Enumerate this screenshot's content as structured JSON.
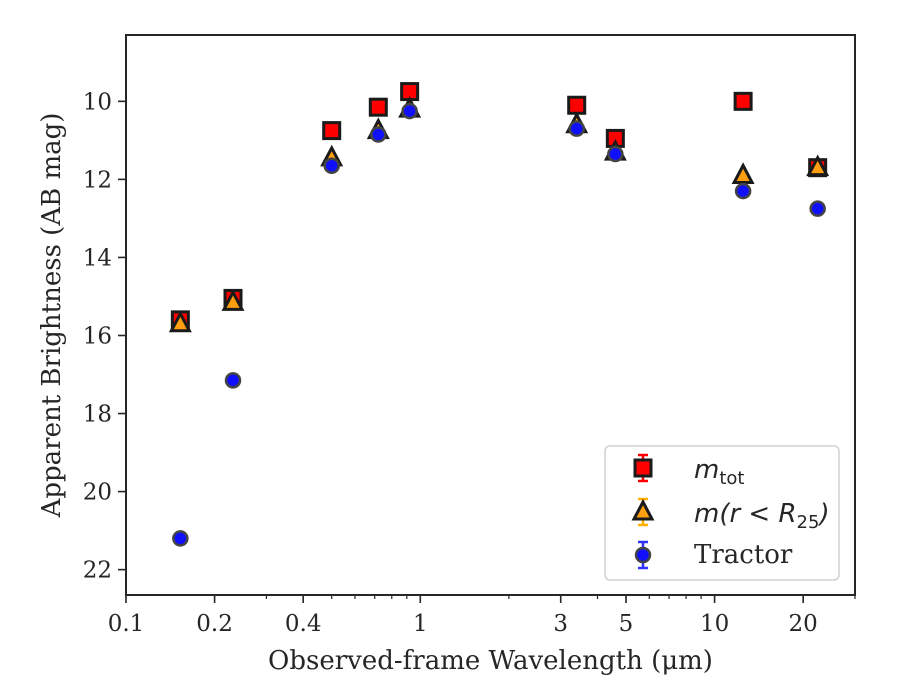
{
  "chart_data": {
    "type": "scatter",
    "xlabel": "Observed-frame Wavelength (μm)",
    "ylabel": "Apparent Brightness (AB mag)",
    "xscale": "log",
    "xlim": [
      0.1,
      30
    ],
    "ylim": [
      22.65,
      8.3
    ],
    "y_inverted": true,
    "x_ticks": [
      0.1,
      0.2,
      0.4,
      1,
      3,
      5,
      10,
      20
    ],
    "x_tick_labels": [
      "0.1",
      "0.2",
      "0.4",
      "1",
      "3",
      "5",
      "10",
      "20"
    ],
    "y_ticks": [
      10,
      12,
      14,
      16,
      18,
      20,
      22
    ],
    "y_tick_labels": [
      "10",
      "12",
      "14",
      "16",
      "18",
      "20",
      "22"
    ],
    "legend_position": "lower right",
    "series": [
      {
        "name": "m_tot",
        "legend_main": "m",
        "legend_sub": "tot",
        "marker": "square",
        "color": "#ff0000",
        "errorbar_color": "#ff0000",
        "points": [
          {
            "x": 0.153,
            "y": 15.6
          },
          {
            "x": 0.231,
            "y": 15.05
          },
          {
            "x": 0.5,
            "y": 10.75
          },
          {
            "x": 0.72,
            "y": 10.15
          },
          {
            "x": 0.92,
            "y": 9.75
          },
          {
            "x": 3.4,
            "y": 10.1
          },
          {
            "x": 4.6,
            "y": 10.95
          },
          {
            "x": 12.5,
            "y": 10.0
          },
          {
            "x": 22.4,
            "y": 11.7
          }
        ]
      },
      {
        "name": "m(r < R25)",
        "legend_main": "m(r < R",
        "legend_sub": "25",
        "legend_end": ")",
        "marker": "triangle",
        "color": "#ff9f0f",
        "errorbar_color": "#ffb000",
        "points": [
          {
            "x": 0.153,
            "y": 15.7
          },
          {
            "x": 0.231,
            "y": 15.15
          },
          {
            "x": 0.5,
            "y": 11.45
          },
          {
            "x": 0.72,
            "y": 10.75
          },
          {
            "x": 0.92,
            "y": 10.2
          },
          {
            "x": 3.4,
            "y": 10.6
          },
          {
            "x": 4.6,
            "y": 11.3
          },
          {
            "x": 12.5,
            "y": 11.9
          },
          {
            "x": 22.4,
            "y": 11.7
          }
        ]
      },
      {
        "name": "Tractor",
        "marker": "circle",
        "color": "#1010ff",
        "errorbar_color": "#3030ff",
        "points": [
          {
            "x": 0.153,
            "y": 21.2
          },
          {
            "x": 0.231,
            "y": 17.15
          },
          {
            "x": 0.5,
            "y": 11.65
          },
          {
            "x": 0.72,
            "y": 10.85
          },
          {
            "x": 0.92,
            "y": 10.25
          },
          {
            "x": 3.4,
            "y": 10.7
          },
          {
            "x": 4.6,
            "y": 11.35
          },
          {
            "x": 12.5,
            "y": 12.3
          },
          {
            "x": 22.4,
            "y": 12.75
          }
        ]
      }
    ]
  }
}
